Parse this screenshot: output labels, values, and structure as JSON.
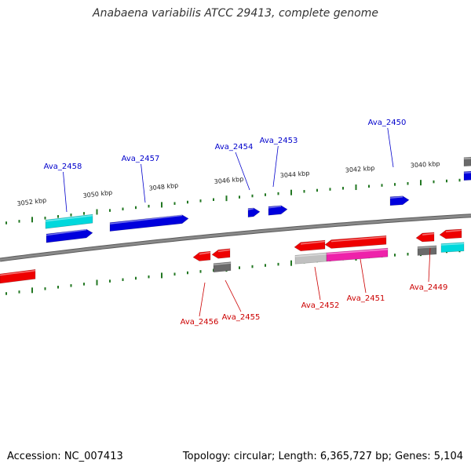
{
  "title": "Anabaena variabilis ATCC 29413, complete genome",
  "footer": {
    "accession": "Accession: NC_007413",
    "info": "Topology: circular; Length: 6,365,727 bp; Genes: 5,104"
  },
  "colors": {
    "backbone": "#8a8a8a",
    "forward_gene": "#0000dd",
    "reverse_gene": "#ee0000",
    "cyan_feature": "#00d8dc",
    "gray_feature": "#6a6a6a",
    "magenta_feature": "#ee22aa",
    "light_gray_feature": "#c0c0c0",
    "tick": "#227722",
    "forward_label": "#0000cc",
    "reverse_label": "#cc0000"
  },
  "scale_labels": [
    "3052 kbp",
    "3050 kbp",
    "3048 kbp",
    "3046 kbp",
    "3044 kbp",
    "3042 kbp",
    "3040 kbp"
  ],
  "forward_genes": [
    "Ava_2458",
    "Ava_2457",
    "Ava_2454",
    "Ava_2453",
    "Ava_2450"
  ],
  "reverse_genes": [
    "Ava_2456",
    "Ava_2455",
    "Ava_2452",
    "Ava_2451",
    "Ava_2449"
  ]
}
